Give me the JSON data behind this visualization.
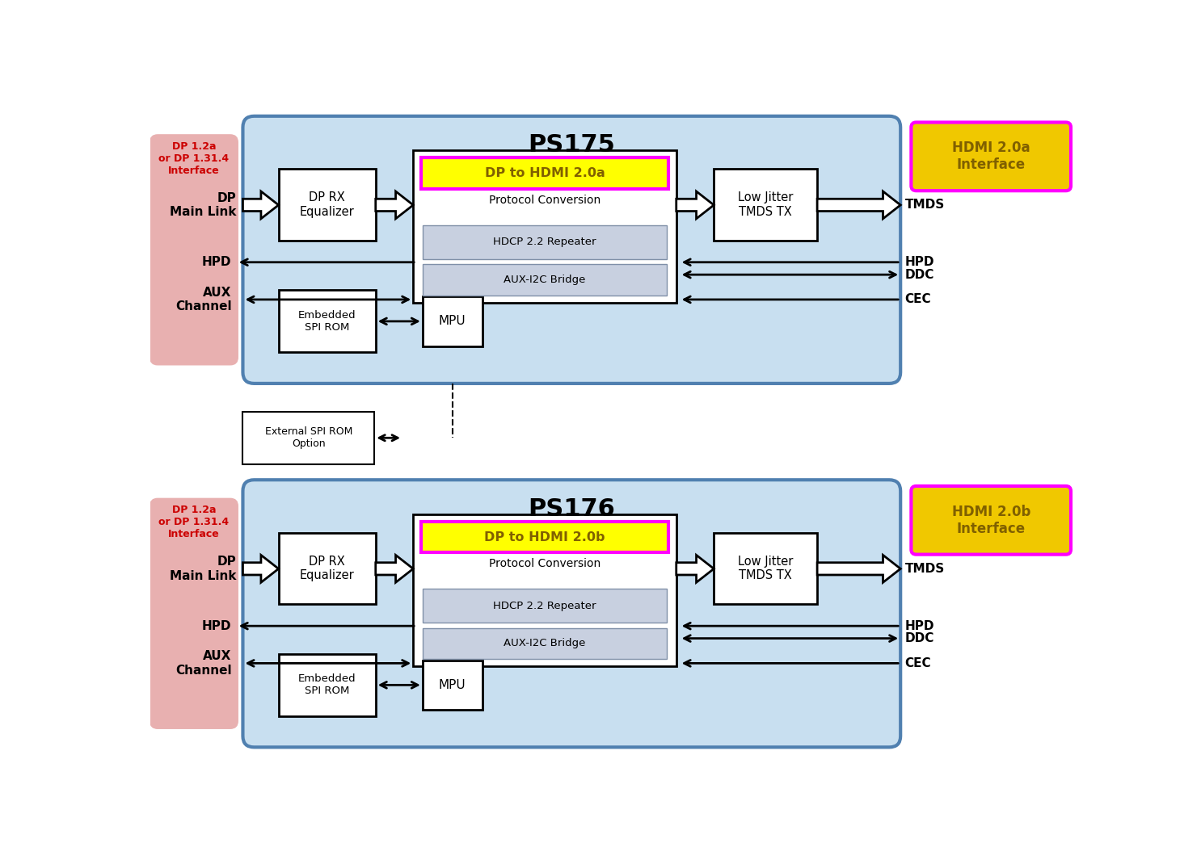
{
  "bg_color": "#ffffff",
  "diagram_bg": "#c8dff0",
  "left_panel_color": "#e8b0b0",
  "yellow_fill": "#ffff00",
  "magenta_border": "#ff00ff",
  "hdcp_fill": "#c8d0e0",
  "aux_fill": "#c8d0e0",
  "top": {
    "title": "PS175",
    "hdmi_label": "HDMI 2.0a\nInterface",
    "dp_label": "DP 1.2a\nor DP 1.31.4\nInterface",
    "conv_title": "DP to HDMI 2.0a"
  },
  "bottom": {
    "title": "PS176",
    "hdmi_label": "HDMI 2.0b\nInterface",
    "dp_label": "DP 1.2a\nor DP 1.31.4\nInterface",
    "conv_title": "DP to HDMI 2.0b"
  }
}
